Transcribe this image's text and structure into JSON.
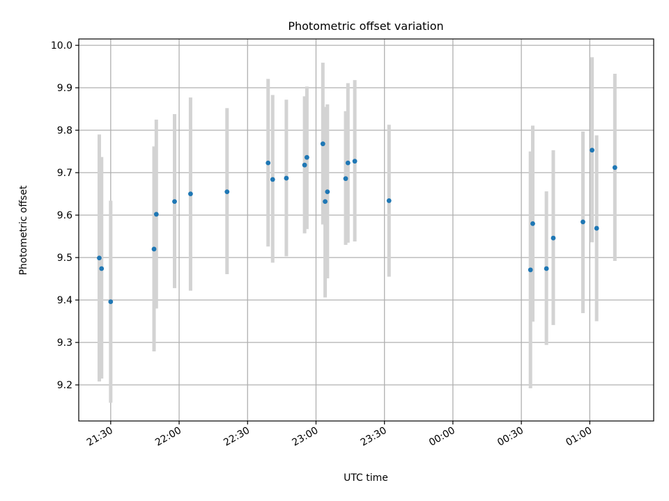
{
  "chart_data": {
    "type": "scatter",
    "title": "Photometric offset variation",
    "xlabel": "UTC time",
    "ylabel": "Photometric offset",
    "x_kind": "time",
    "xlim": [
      "21:16",
      "01:28"
    ],
    "ylim": [
      9.115,
      10.015
    ],
    "grid": true,
    "x_tick_labels": [
      "21:30",
      "22:00",
      "22:30",
      "23:00",
      "23:30",
      "00:00",
      "00:30",
      "01:00"
    ],
    "y_tick_labels": [
      "9.2",
      "9.3",
      "9.4",
      "9.5",
      "9.6",
      "9.7",
      "9.8",
      "9.9",
      "10.0"
    ],
    "colors": {
      "point": "#1f77b4",
      "errorbar": "#d3d3d3",
      "grid": "#b0b0b0"
    },
    "series": [
      {
        "points": [
          {
            "x": "21:25",
            "y": 9.499,
            "ylo": 9.208,
            "yhi": 9.79
          },
          {
            "x": "21:26",
            "y": 9.474,
            "ylo": 9.215,
            "yhi": 9.737
          },
          {
            "x": "21:30",
            "y": 9.396,
            "ylo": 9.158,
            "yhi": 9.634
          },
          {
            "x": "21:49",
            "y": 9.52,
            "ylo": 9.279,
            "yhi": 9.762
          },
          {
            "x": "21:50",
            "y": 9.602,
            "ylo": 9.38,
            "yhi": 9.825
          },
          {
            "x": "21:58",
            "y": 9.632,
            "ylo": 9.428,
            "yhi": 9.838
          },
          {
            "x": "22:05",
            "y": 9.65,
            "ylo": 9.422,
            "yhi": 9.877
          },
          {
            "x": "22:21",
            "y": 9.655,
            "ylo": 9.461,
            "yhi": 9.852
          },
          {
            "x": "22:39",
            "y": 9.723,
            "ylo": 9.526,
            "yhi": 9.921
          },
          {
            "x": "22:41",
            "y": 9.684,
            "ylo": 9.488,
            "yhi": 9.883
          },
          {
            "x": "22:47",
            "y": 9.687,
            "ylo": 9.503,
            "yhi": 9.872
          },
          {
            "x": "22:55",
            "y": 9.718,
            "ylo": 9.557,
            "yhi": 9.88
          },
          {
            "x": "22:56",
            "y": 9.736,
            "ylo": 9.567,
            "yhi": 9.903
          },
          {
            "x": "23:03",
            "y": 9.768,
            "ylo": 9.578,
            "yhi": 9.959
          },
          {
            "x": "23:04",
            "y": 9.632,
            "ylo": 9.406,
            "yhi": 9.855
          },
          {
            "x": "23:05",
            "y": 9.655,
            "ylo": 9.451,
            "yhi": 9.861
          },
          {
            "x": "23:13",
            "y": 9.686,
            "ylo": 9.53,
            "yhi": 9.845
          },
          {
            "x": "23:14",
            "y": 9.723,
            "ylo": 9.535,
            "yhi": 9.911
          },
          {
            "x": "23:17",
            "y": 9.727,
            "ylo": 9.538,
            "yhi": 9.918
          },
          {
            "x": "23:32",
            "y": 9.634,
            "ylo": 9.455,
            "yhi": 9.813
          },
          {
            "x": "00:34",
            "y": 9.471,
            "ylo": 9.192,
            "yhi": 9.75
          },
          {
            "x": "00:35",
            "y": 9.58,
            "ylo": 9.349,
            "yhi": 9.811
          },
          {
            "x": "00:41",
            "y": 9.474,
            "ylo": 9.294,
            "yhi": 9.656
          },
          {
            "x": "00:44",
            "y": 9.546,
            "ylo": 9.341,
            "yhi": 9.753
          },
          {
            "x": "00:57",
            "y": 9.584,
            "ylo": 9.369,
            "yhi": 9.797
          },
          {
            "x": "01:01",
            "y": 9.753,
            "ylo": 9.536,
            "yhi": 9.972
          },
          {
            "x": "01:03",
            "y": 9.569,
            "ylo": 9.35,
            "yhi": 9.788
          },
          {
            "x": "01:11",
            "y": 9.712,
            "ylo": 9.492,
            "yhi": 9.933
          }
        ]
      }
    ]
  }
}
